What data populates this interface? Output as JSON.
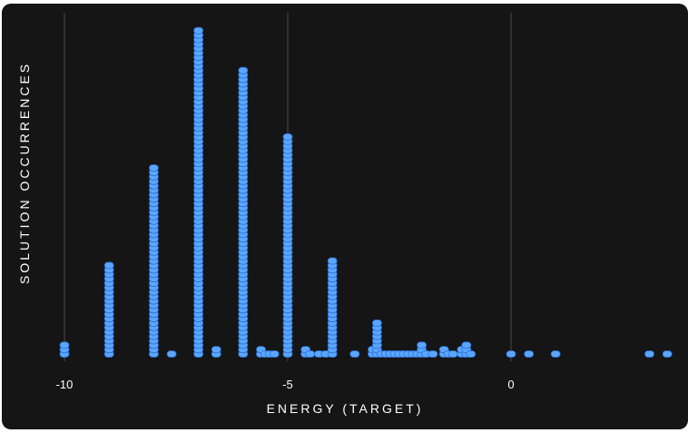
{
  "chart_data": {
    "type": "scatter",
    "xlabel": "ENERGY (TARGET)",
    "ylabel": "SOLUTION OCCURRENCES",
    "xlim": [
      -10,
      3.5
    ],
    "ylim": [
      0,
      75
    ],
    "x_ticks": [
      -10,
      -5,
      0
    ],
    "x_tick_labels": [
      "-10",
      "-5",
      "0"
    ],
    "grid": "vertical lines at x ticks",
    "legend": "none",
    "colors": {
      "point_fill": "#5aa6ff",
      "point_stroke": "#2a6fd6",
      "background": "#151515",
      "grid": "#4a4a4a",
      "text": "#ffffff"
    },
    "series": [
      {
        "points": [
          {
            "x": -10,
            "count": 3
          },
          {
            "x": -9,
            "count": 21
          },
          {
            "x": -8,
            "count": 43
          },
          {
            "x": -7.6,
            "count": 1
          },
          {
            "x": -7,
            "count": 74
          },
          {
            "x": -6.6,
            "count": 2
          },
          {
            "x": -6,
            "count": 65
          },
          {
            "x": -5.6,
            "count": 2
          },
          {
            "x": -5.5,
            "count": 1
          },
          {
            "x": -5.4,
            "count": 1
          },
          {
            "x": -5.3,
            "count": 1
          },
          {
            "x": -5,
            "count": 50
          },
          {
            "x": -4.6,
            "count": 2
          },
          {
            "x": -4.5,
            "count": 1
          },
          {
            "x": -4.3,
            "count": 1
          },
          {
            "x": -4.15,
            "count": 1
          },
          {
            "x": -4,
            "count": 22
          },
          {
            "x": -3.5,
            "count": 1
          },
          {
            "x": -3.1,
            "count": 2
          },
          {
            "x": -3,
            "count": 8
          },
          {
            "x": -2.9,
            "count": 1
          },
          {
            "x": -2.8,
            "count": 1
          },
          {
            "x": -2.7,
            "count": 1
          },
          {
            "x": -2.6,
            "count": 1
          },
          {
            "x": -2.5,
            "count": 1
          },
          {
            "x": -2.4,
            "count": 1
          },
          {
            "x": -2.3,
            "count": 1
          },
          {
            "x": -2.2,
            "count": 1
          },
          {
            "x": -2.1,
            "count": 1
          },
          {
            "x": -2,
            "count": 3
          },
          {
            "x": -1.9,
            "count": 1
          },
          {
            "x": -1.75,
            "count": 1
          },
          {
            "x": -1.5,
            "count": 2
          },
          {
            "x": -1.4,
            "count": 1
          },
          {
            "x": -1.3,
            "count": 1
          },
          {
            "x": -1.1,
            "count": 2
          },
          {
            "x": -1,
            "count": 3
          },
          {
            "x": -0.9,
            "count": 1
          },
          {
            "x": 0,
            "count": 1
          },
          {
            "x": 0.4,
            "count": 1
          },
          {
            "x": 1,
            "count": 1
          },
          {
            "x": 3.1,
            "count": 1
          },
          {
            "x": 3.5,
            "count": 1
          }
        ]
      }
    ]
  }
}
